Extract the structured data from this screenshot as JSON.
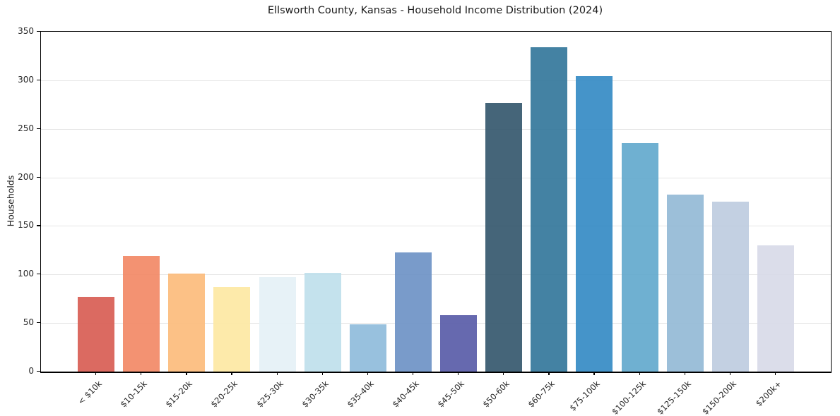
{
  "chart_data": {
    "type": "bar",
    "title": "Ellsworth County, Kansas - Household Income Distribution (2024)",
    "xlabel": "",
    "ylabel": "Households",
    "categories": [
      "< $10k",
      "$10-15k",
      "$15-20k",
      "$20-25k",
      "$25-30k",
      "$30-35k",
      "$35-40k",
      "$40-45k",
      "$45-50k",
      "$50-60k",
      "$60-75k",
      "$75-100k",
      "$100-125k",
      "$125-150k",
      "$150-200k",
      "$200k+"
    ],
    "values": [
      77,
      119,
      101,
      87,
      97,
      102,
      49,
      123,
      58,
      277,
      334,
      304,
      235,
      182,
      175,
      130
    ],
    "bar_colors": [
      "#d85f55",
      "#f28a67",
      "#fcbc7d",
      "#fde8a4",
      "#e5f1f6",
      "#bfe0ec",
      "#90bcdc",
      "#6f93c6",
      "#5a5ea9",
      "#37596f",
      "#36789c",
      "#378cc5",
      "#64aacd",
      "#94bad6",
      "#becce0",
      "#d8dae8"
    ],
    "ylim": [
      0,
      350
    ],
    "yticks": [
      0,
      50,
      100,
      150,
      200,
      250,
      300,
      350
    ],
    "grid": "horizontal",
    "gridline_color": "#e5e5e5",
    "background_color": "#ffffff",
    "spine_color": "#000000",
    "legend": "none"
  }
}
